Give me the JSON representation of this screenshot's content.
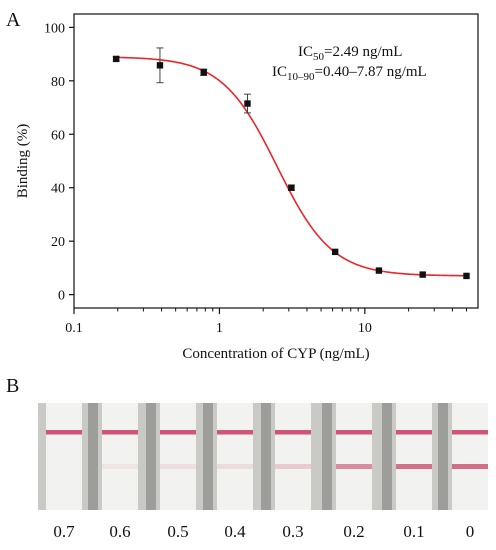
{
  "panel_a": {
    "label": "A",
    "annotation": {
      "ic50": {
        "main": "IC",
        "sub": "50",
        "value": "=2.49 ng/mL"
      },
      "ic10_90": {
        "main": "IC",
        "sub": "10–90",
        "value": "=0.40–7.87 ng/mL"
      }
    }
  },
  "panel_b": {
    "label": "B",
    "strip_labels": [
      "0.7",
      "0.6",
      "0.5",
      "0.4",
      "0.3",
      "0.2",
      "0.1",
      "0"
    ]
  },
  "chart_data": {
    "type": "scatter",
    "title": "",
    "xlabel": "Concentration of CYP (ng/mL)",
    "ylabel": "Binding (%)",
    "x_scale": "log",
    "xlim": [
      0.1,
      60
    ],
    "ylim": [
      -5,
      105
    ],
    "x_ticks": [
      0.1,
      1,
      10
    ],
    "x_tick_labels": [
      "0.1",
      "1",
      "10"
    ],
    "y_ticks": [
      0,
      20,
      40,
      60,
      80,
      100
    ],
    "y_tick_labels": [
      "0",
      "20",
      "40",
      "60",
      "80",
      "100"
    ],
    "series": [
      {
        "points": [
          {
            "x": 0.195,
            "y": 88.2,
            "err": 0.8
          },
          {
            "x": 0.39,
            "y": 85.8,
            "err": 6.5
          },
          {
            "x": 0.78,
            "y": 83.2,
            "err": 1.2
          },
          {
            "x": 1.56,
            "y": 71.5,
            "err": 3.5
          },
          {
            "x": 3.125,
            "y": 40.0,
            "err": 1.0
          },
          {
            "x": 6.25,
            "y": 16.0,
            "err": 0.6
          },
          {
            "x": 12.5,
            "y": 9.0,
            "err": 0.5
          },
          {
            "x": 25,
            "y": 7.5,
            "err": 0.5
          },
          {
            "x": 50,
            "y": 7.0,
            "err": 0.5
          }
        ],
        "fit": {
          "model": "four-parameter logistic",
          "top": 89,
          "bottom": 7,
          "ic50": 2.49,
          "hill": 2.3
        },
        "color": "#111111",
        "fit_color": "#e8262b"
      }
    ]
  },
  "colors": {
    "fit_curve": "#e8262b",
    "points": "#111111",
    "strip_line": "#c83a5e"
  }
}
